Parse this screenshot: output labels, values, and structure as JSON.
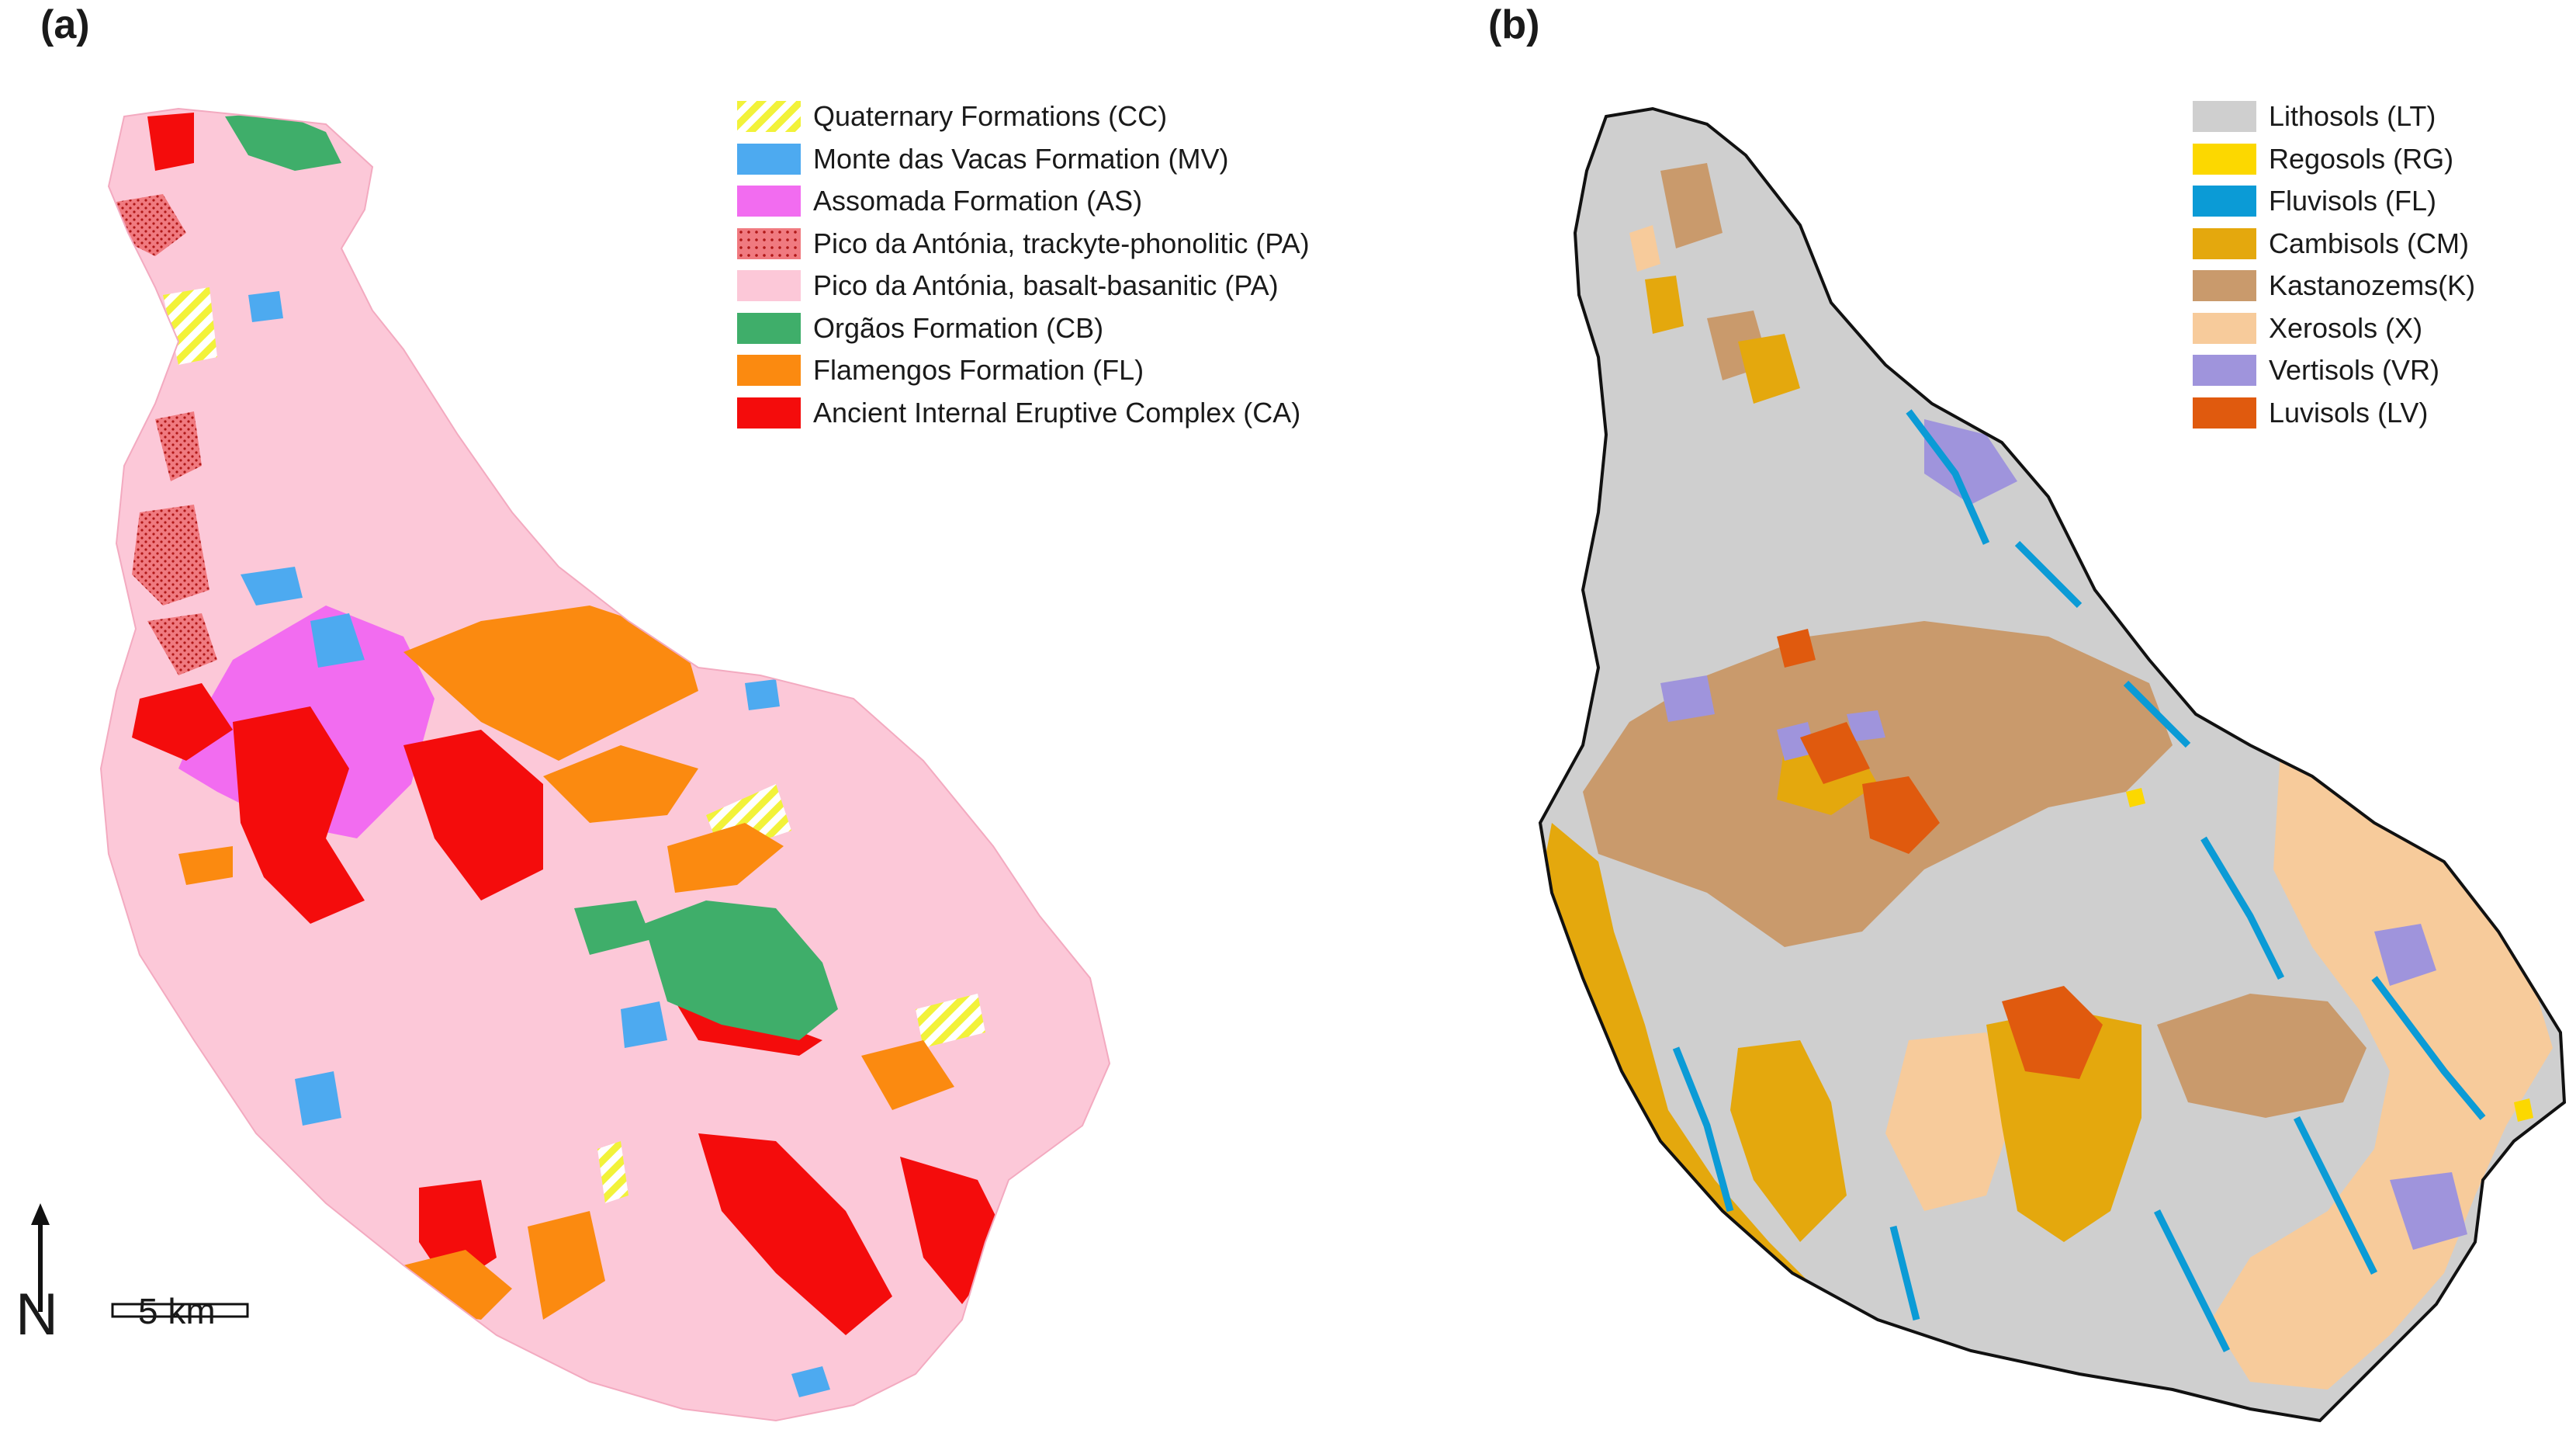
{
  "panels": {
    "a": {
      "label": "(a)"
    },
    "b": {
      "label": "(b)"
    }
  },
  "legend_a": [
    {
      "label": "Quaternary Formations (CC)",
      "color": "#f2f23a",
      "pattern": "hatch"
    },
    {
      "label": "Monte das Vacas Formation (MV)",
      "color": "#4daaf0"
    },
    {
      "label": "Assomada Formation (AS)",
      "color": "#f26cf0"
    },
    {
      "label": "Pico da Antónia, trackyte-phonolitic (PA)",
      "color": "#f07a80",
      "pattern": "dots"
    },
    {
      "label": "Pico da Antónia, basalt-basanitic (PA)",
      "color": "#fcc8d8"
    },
    {
      "label": "Orgãos Formation (CB)",
      "color": "#3fae6a"
    },
    {
      "label": "Flamengos Formation (FL)",
      "color": "#fb8a10"
    },
    {
      "label": "Ancient Internal Eruptive Complex (CA)",
      "color": "#f40c0c"
    }
  ],
  "legend_b": [
    {
      "label": "Lithosols (LT)",
      "color": "#cfcfcf"
    },
    {
      "label": "Regosols (RG)",
      "color": "#fcd800"
    },
    {
      "label": "Fluvisols (FL)",
      "color": "#0b9bd6"
    },
    {
      "label": "Cambisols (CM)",
      "color": "#e4a80d"
    },
    {
      "label": "Kastanozems(K)",
      "color": "#c99a6c"
    },
    {
      "label": "Xerosols (X)",
      "color": "#f7cb9b"
    },
    {
      "label": "Vertisols (VR)",
      "color": "#9f94dc"
    },
    {
      "label": "Luvisols (LV)",
      "color": "#e05a0e"
    }
  ],
  "north_arrow": {
    "label": "N",
    "icon": "north-arrow-icon"
  },
  "scale_bar": {
    "label": "5 km"
  },
  "colors": {
    "island_a_base": "#fcc8d8",
    "island_b_base": "#cfcfcf",
    "outline": "#111111"
  }
}
